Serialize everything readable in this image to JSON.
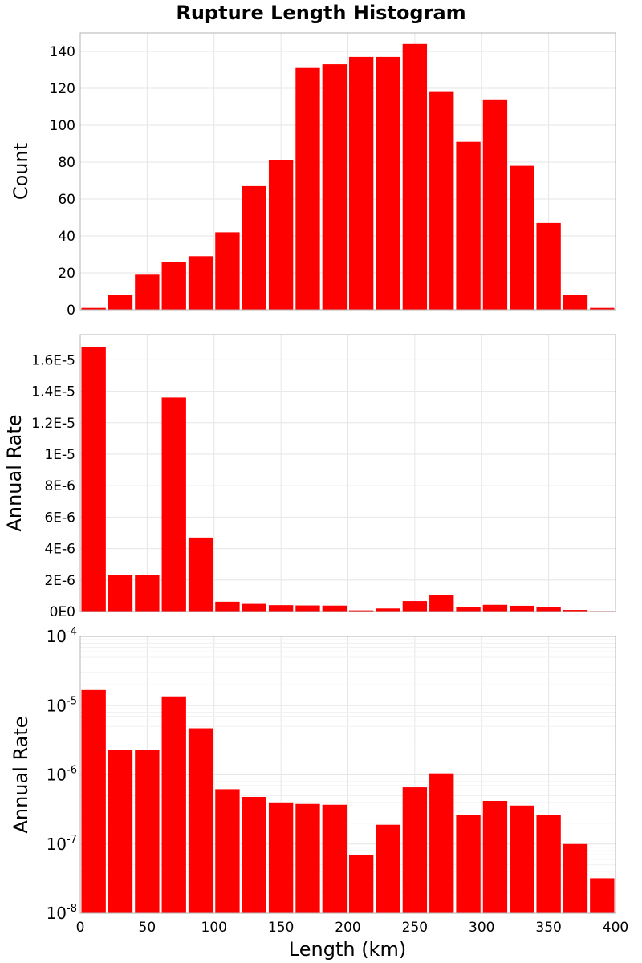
{
  "chart_data": {
    "type": "bar",
    "title": "Rupture Length Histogram",
    "xlabel": "Length (km)",
    "xlim": [
      0,
      400
    ],
    "x_ticks": [
      "0",
      "50",
      "100",
      "150",
      "200",
      "250",
      "300",
      "350",
      "400"
    ],
    "bin_width": 20,
    "bin_centers": [
      10,
      30,
      50,
      70,
      90,
      110,
      130,
      150,
      170,
      190,
      210,
      230,
      250,
      270,
      290,
      310,
      330,
      350,
      370,
      390
    ],
    "bar_color": "#ff0000",
    "grid": true,
    "panels": [
      {
        "ylabel": "Count",
        "yscale": "linear",
        "ylim": [
          0,
          150
        ],
        "y_ticks": [
          {
            "value": 0,
            "label": "0"
          },
          {
            "value": 20,
            "label": "20"
          },
          {
            "value": 40,
            "label": "40"
          },
          {
            "value": 60,
            "label": "60"
          },
          {
            "value": 80,
            "label": "80"
          },
          {
            "value": 100,
            "label": "100"
          },
          {
            "value": 120,
            "label": "120"
          },
          {
            "value": 140,
            "label": "140"
          }
        ],
        "values": [
          1,
          8,
          19,
          26,
          29,
          42,
          67,
          81,
          131,
          133,
          137,
          137,
          144,
          118,
          91,
          114,
          78,
          47,
          8,
          1
        ]
      },
      {
        "ylabel": "Annual Rate",
        "yscale": "linear",
        "ylim": [
          0,
          1.76e-05
        ],
        "y_ticks": [
          {
            "value": 0,
            "label": "0E0"
          },
          {
            "value": 2e-06,
            "label": "2E-6"
          },
          {
            "value": 4e-06,
            "label": "4E-6"
          },
          {
            "value": 6e-06,
            "label": "6E-6"
          },
          {
            "value": 8e-06,
            "label": "8E-6"
          },
          {
            "value": 1e-05,
            "label": "1E-5"
          },
          {
            "value": 1.2e-05,
            "label": "1.2E-5"
          },
          {
            "value": 1.4e-05,
            "label": "1.4E-5"
          },
          {
            "value": 1.6e-05,
            "label": "1.6E-5"
          }
        ],
        "values": [
          1.68e-05,
          2.3e-06,
          2.3e-06,
          1.36e-05,
          4.7e-06,
          6.2e-07,
          4.8e-07,
          4e-07,
          3.8e-07,
          3.7e-07,
          7e-08,
          1.9e-07,
          6.6e-07,
          1.05e-06,
          2.6e-07,
          4.2e-07,
          3.6e-07,
          2.6e-07,
          1e-07,
          3.2e-08
        ]
      },
      {
        "ylabel": "Annual Rate",
        "yscale": "log",
        "ylim": [
          1e-08,
          0.0001
        ],
        "y_ticks": [
          {
            "value": 1e-08,
            "base": "10",
            "exp": "-8"
          },
          {
            "value": 1e-07,
            "base": "10",
            "exp": "-7"
          },
          {
            "value": 1e-06,
            "base": "10",
            "exp": "-6"
          },
          {
            "value": 1e-05,
            "base": "10",
            "exp": "-5"
          },
          {
            "value": 0.0001,
            "base": "10",
            "exp": "-4"
          }
        ],
        "values": [
          1.68e-05,
          2.3e-06,
          2.3e-06,
          1.36e-05,
          4.7e-06,
          6.2e-07,
          4.8e-07,
          4e-07,
          3.8e-07,
          3.7e-07,
          7e-08,
          1.9e-07,
          6.6e-07,
          1.05e-06,
          2.6e-07,
          4.2e-07,
          3.6e-07,
          2.6e-07,
          1e-07,
          3.2e-08
        ]
      }
    ]
  }
}
